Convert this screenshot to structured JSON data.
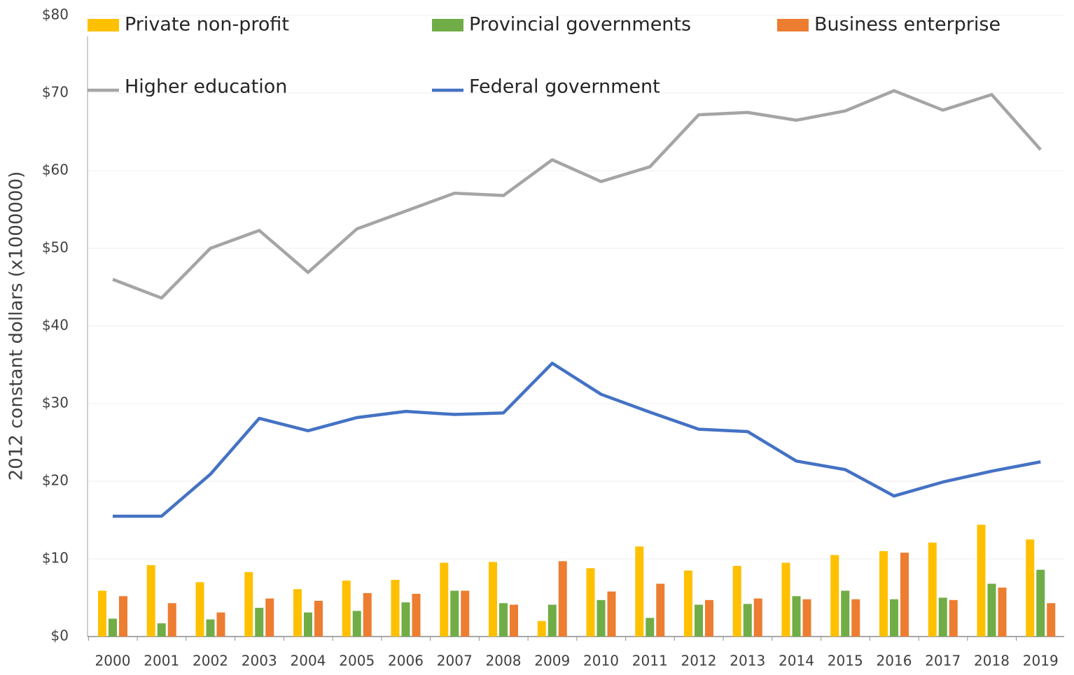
{
  "chart_data": {
    "type": "combo",
    "y_label": "2012 constant dollars (x1000000)",
    "categories": [
      "2000",
      "2001",
      "2002",
      "2003",
      "2004",
      "2005",
      "2006",
      "2007",
      "2008",
      "2009",
      "2010",
      "2011",
      "2012",
      "2013",
      "2014",
      "2015",
      "2016",
      "2017",
      "2018",
      "2019"
    ],
    "ylim": [
      0,
      80
    ],
    "yticks": [
      {
        "value": 0,
        "label": "$0"
      },
      {
        "value": 10,
        "label": "$10"
      },
      {
        "value": 20,
        "label": "$20"
      },
      {
        "value": 30,
        "label": "$30"
      },
      {
        "value": 40,
        "label": "$40"
      },
      {
        "value": 50,
        "label": "$50"
      },
      {
        "value": 60,
        "label": "$60"
      },
      {
        "value": 70,
        "label": "$70"
      },
      {
        "value": 80,
        "label": "$80"
      }
    ],
    "grid": true,
    "series": [
      {
        "name": "Private non-profit",
        "type": "bar",
        "color": "#ffc000",
        "values": [
          5.9,
          9.2,
          7.0,
          8.3,
          6.1,
          7.2,
          7.3,
          9.5,
          9.6,
          2.0,
          8.8,
          11.6,
          8.5,
          9.1,
          9.5,
          10.5,
          11.0,
          12.1,
          14.4,
          12.5
        ]
      },
      {
        "name": "Provincial governments",
        "type": "bar",
        "color": "#70ad47",
        "values": [
          2.3,
          1.7,
          2.2,
          3.7,
          3.1,
          3.3,
          4.4,
          5.9,
          4.3,
          4.1,
          4.7,
          2.4,
          4.1,
          4.2,
          5.2,
          5.9,
          4.8,
          5.0,
          6.8,
          8.6
        ]
      },
      {
        "name": "Business enterprise",
        "type": "bar",
        "color": "#ed7d31",
        "values": [
          5.2,
          4.3,
          3.1,
          4.9,
          4.6,
          5.6,
          5.5,
          5.9,
          4.1,
          9.7,
          5.8,
          6.8,
          4.7,
          4.9,
          4.8,
          4.8,
          10.8,
          4.7,
          6.3,
          4.3
        ]
      },
      {
        "name": "Higher education",
        "type": "line",
        "color": "#a5a5a5",
        "values": [
          46.0,
          43.6,
          50.0,
          52.3,
          46.9,
          52.5,
          54.8,
          57.1,
          56.8,
          61.4,
          58.6,
          60.5,
          67.2,
          67.5,
          66.5,
          67.7,
          70.3,
          67.8,
          69.8,
          62.7
        ]
      },
      {
        "name": "Federal government",
        "type": "line",
        "color": "#4472c4",
        "values": [
          15.5,
          15.5,
          20.9,
          28.1,
          26.5,
          28.2,
          29.0,
          28.6,
          28.8,
          35.2,
          31.2,
          28.9,
          26.7,
          26.4,
          22.6,
          21.5,
          18.1,
          19.9,
          21.3,
          22.5
        ]
      }
    ]
  }
}
